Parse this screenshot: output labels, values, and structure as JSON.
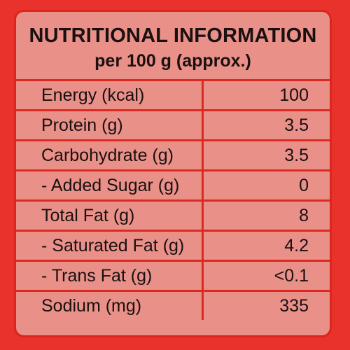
{
  "header": {
    "title": "NUTRITIONAL INFORMATION",
    "subtitle": "per 100 g (approx.)"
  },
  "table": {
    "rows": [
      [
        "Energy (kcal)",
        100
      ],
      [
        "Protein (g)",
        3.5
      ],
      [
        "Carbohydrate (g)",
        3.5
      ],
      [
        "- Added Sugar (g)",
        0
      ],
      [
        "Total Fat (g)",
        8
      ],
      [
        "- Saturated Fat (g)",
        4.2
      ],
      [
        "- Trans Fat (g)",
        "<0.1"
      ],
      [
        "Sodium (mg)",
        335
      ]
    ]
  }
}
